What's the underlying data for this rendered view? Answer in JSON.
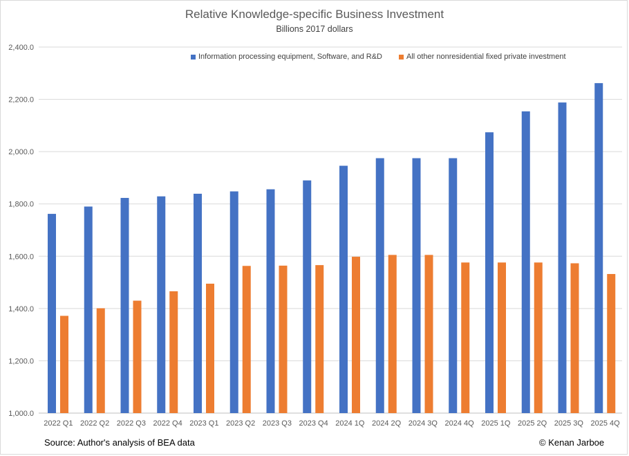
{
  "chart_data": {
    "type": "bar",
    "title": "Relative Knowledge-specific Business Investment",
    "subtitle": "Billions 2017 dollars",
    "categories": [
      "2022 Q1",
      "2022 Q2",
      "2022 Q3",
      "2022 Q4",
      "2023 Q1",
      "2023 Q2",
      "2023 Q3",
      "2023 Q4",
      "2024 1Q",
      "2024 2Q",
      "2024 3Q",
      "2024 4Q",
      "2025 1Q",
      "2025 2Q",
      "2025 3Q",
      "2025 4Q"
    ],
    "series": [
      {
        "name": "Information processing equipment, Software, and R&D",
        "color": "#4472c4",
        "values": [
          1762,
          1790,
          1823,
          1829,
          1839,
          1848,
          1856,
          1890,
          1946,
          1975,
          1975,
          1975,
          2074,
          2154,
          2188,
          2262
        ]
      },
      {
        "name": "All other nonresidential fixed private investment",
        "color": "#ed7d31",
        "values": [
          1372,
          1401,
          1430,
          1466,
          1495,
          1563,
          1564,
          1566,
          1598,
          1605,
          1605,
          1576,
          1576,
          1576,
          1573,
          1532
        ]
      }
    ],
    "ylim": [
      1000,
      2400
    ],
    "yticks": [
      1000,
      1200,
      1400,
      1600,
      1800,
      2000,
      2200,
      2400
    ],
    "ytick_labels": [
      "1,000.0",
      "1,200.0",
      "1,400.0",
      "1,600.0",
      "1,800.0",
      "2,000.0",
      "2,200.0",
      "2,400.0"
    ],
    "grid": true,
    "legend": "top"
  },
  "footer": {
    "source": "Source: Author's analysis of BEA data",
    "copyright": "© Kenan Jarboe"
  }
}
